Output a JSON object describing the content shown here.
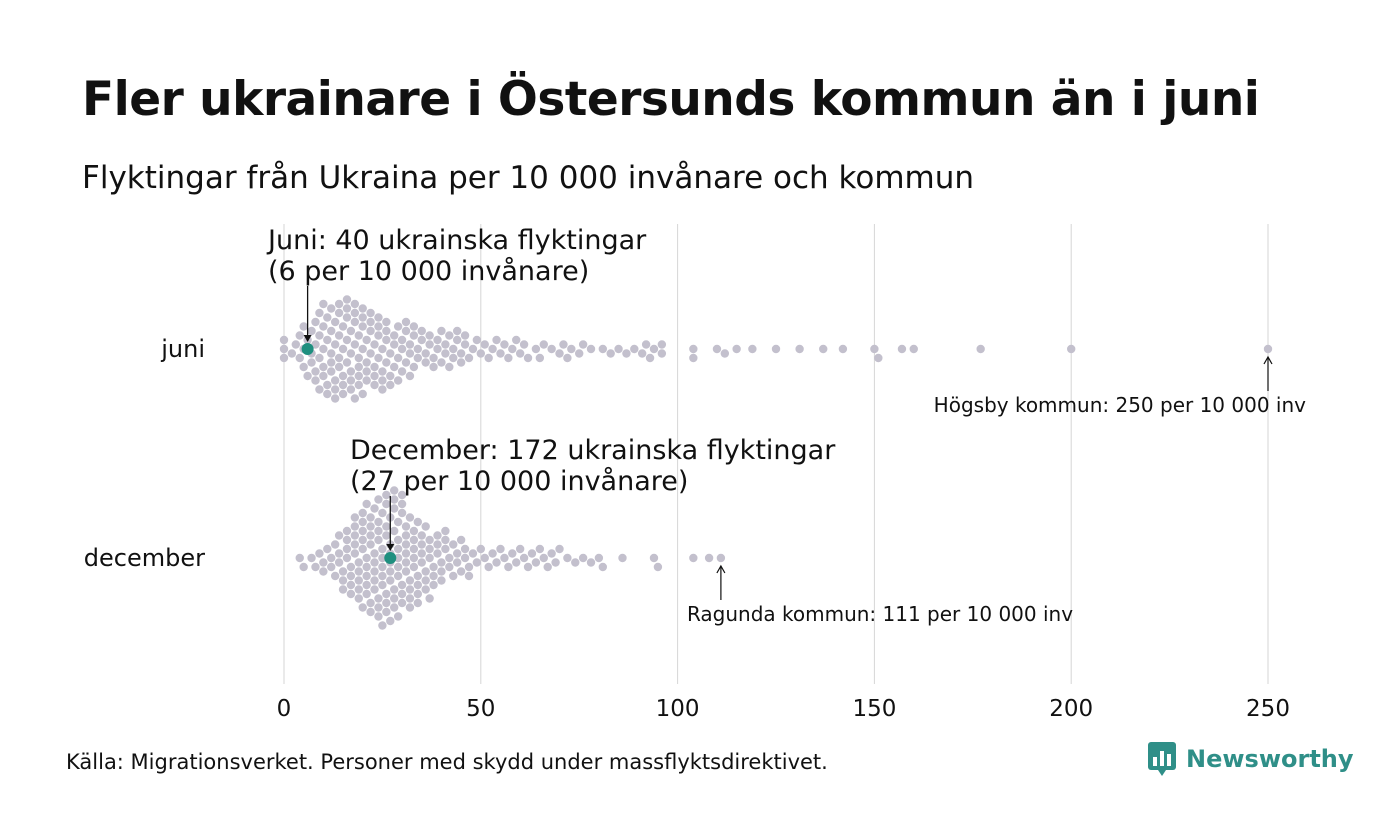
{
  "title": "Fler ukrainare i Östersunds kommun än i juni",
  "subtitle": "Flyktingar från Ukraina per 10 000 invånare och kommun",
  "source": "Källa: Migrationsverket. Personer med skydd under massflyktsdirektivet.",
  "brand": {
    "name": "Newsworthy",
    "logo_icon": "newsworthy-logo-icon"
  },
  "colors": {
    "dot": "#c3c0cd",
    "highlight": "#1f8f7f",
    "grid": "#d6d6d6",
    "text": "#111111",
    "brand": "#2f8f88"
  },
  "chart_data": {
    "type": "scatter",
    "subtype": "beeswarm",
    "xlabel": "",
    "ylabel": "",
    "xlim": [
      0,
      250
    ],
    "x_ticks": [
      "0",
      "50",
      "100",
      "150",
      "200",
      "250"
    ],
    "grid": true,
    "series": [
      {
        "name": "juni",
        "highlight": {
          "value": 6,
          "label_line1": "Juni:  40 ukrainska flyktingar",
          "label_line2": "(6 per 10 000 invånare)"
        },
        "max_annotation": {
          "value": 250,
          "label": "Högsby kommun: 250 per 10 000 inv"
        },
        "values": [
          0,
          0,
          0,
          2,
          3,
          4,
          4,
          5,
          5,
          5,
          6,
          6,
          7,
          7,
          7,
          8,
          8,
          8,
          8,
          9,
          9,
          9,
          9,
          10,
          10,
          10,
          10,
          10,
          11,
          11,
          11,
          11,
          12,
          12,
          12,
          12,
          12,
          13,
          13,
          13,
          13,
          13,
          14,
          14,
          14,
          14,
          14,
          15,
          15,
          15,
          15,
          15,
          16,
          16,
          16,
          16,
          16,
          17,
          17,
          17,
          17,
          17,
          18,
          18,
          18,
          18,
          18,
          19,
          19,
          19,
          19,
          19,
          20,
          20,
          20,
          20,
          20,
          21,
          21,
          21,
          21,
          22,
          22,
          22,
          22,
          23,
          23,
          23,
          23,
          24,
          24,
          24,
          24,
          25,
          25,
          25,
          25,
          26,
          26,
          26,
          26,
          27,
          27,
          27,
          28,
          28,
          28,
          29,
          29,
          29,
          30,
          30,
          30,
          31,
          31,
          31,
          32,
          32,
          32,
          33,
          33,
          33,
          34,
          34,
          35,
          35,
          36,
          36,
          37,
          37,
          38,
          38,
          39,
          39,
          40,
          40,
          41,
          41,
          42,
          42,
          43,
          43,
          44,
          44,
          45,
          45,
          46,
          46,
          47,
          48,
          49,
          50,
          51,
          52,
          53,
          54,
          55,
          56,
          57,
          58,
          59,
          60,
          61,
          62,
          64,
          65,
          66,
          68,
          70,
          71,
          72,
          73,
          75,
          76,
          78,
          81,
          83,
          85,
          87,
          89,
          91,
          92,
          93,
          94,
          96,
          96,
          104,
          104,
          110,
          112,
          115,
          119,
          125,
          131,
          137,
          142,
          150,
          151,
          157,
          160,
          177,
          200,
          250
        ]
      },
      {
        "name": "december",
        "highlight": {
          "value": 27,
          "label_line1": "December: 172 ukrainska flyktingar",
          "label_line2": "(27 per 10 000 invånare)"
        },
        "max_annotation": {
          "value": 111,
          "label": "Ragunda kommun: 111 per 10 000 inv"
        },
        "values": [
          4,
          5,
          7,
          8,
          9,
          10,
          10,
          11,
          12,
          12,
          13,
          13,
          14,
          14,
          14,
          15,
          15,
          15,
          16,
          16,
          16,
          16,
          17,
          17,
          17,
          17,
          18,
          18,
          18,
          18,
          18,
          19,
          19,
          19,
          19,
          19,
          20,
          20,
          20,
          20,
          20,
          20,
          21,
          21,
          21,
          21,
          21,
          21,
          22,
          22,
          22,
          22,
          22,
          22,
          23,
          23,
          23,
          23,
          23,
          23,
          24,
          24,
          24,
          24,
          24,
          24,
          24,
          25,
          25,
          25,
          25,
          25,
          25,
          25,
          26,
          26,
          26,
          26,
          26,
          26,
          26,
          27,
          27,
          27,
          27,
          27,
          27,
          27,
          28,
          28,
          28,
          28,
          28,
          28,
          28,
          29,
          29,
          29,
          29,
          29,
          29,
          29,
          30,
          30,
          30,
          30,
          30,
          30,
          31,
          31,
          31,
          31,
          31,
          31,
          32,
          32,
          32,
          32,
          32,
          33,
          33,
          33,
          33,
          33,
          34,
          34,
          34,
          34,
          34,
          35,
          35,
          35,
          35,
          36,
          36,
          36,
          36,
          37,
          37,
          37,
          37,
          38,
          38,
          38,
          39,
          39,
          39,
          40,
          40,
          40,
          41,
          41,
          41,
          42,
          42,
          43,
          43,
          44,
          44,
          45,
          45,
          46,
          46,
          47,
          47,
          48,
          49,
          50,
          51,
          52,
          53,
          54,
          55,
          56,
          57,
          58,
          59,
          60,
          61,
          62,
          63,
          64,
          65,
          66,
          67,
          68,
          69,
          70,
          72,
          74,
          76,
          78,
          80,
          81,
          86,
          94,
          95,
          104,
          108,
          111
        ]
      }
    ]
  }
}
